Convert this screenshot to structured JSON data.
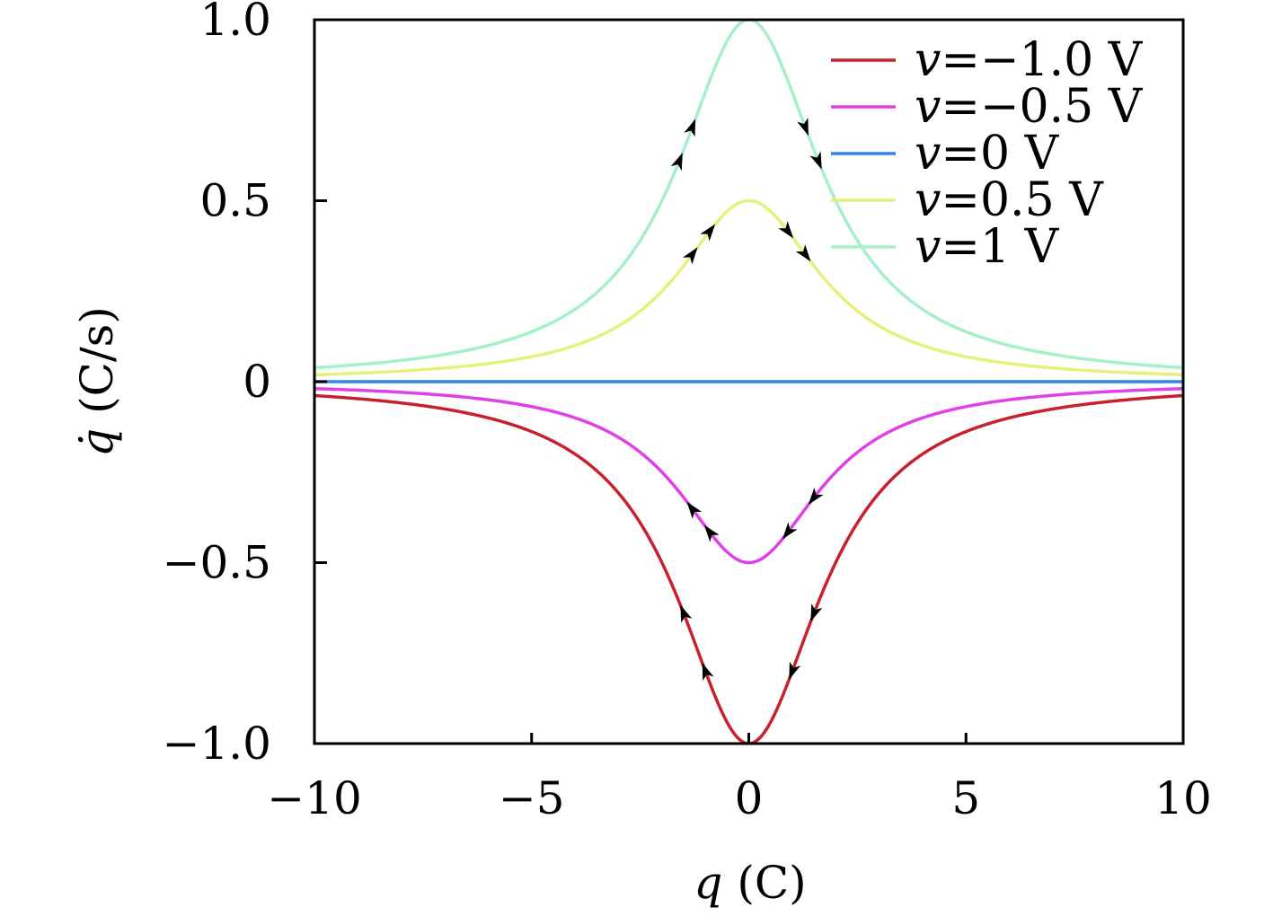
{
  "chart_data": {
    "type": "line",
    "xlabel_var": "q",
    "xlabel_unit": "(C)",
    "ylabel_var": "q̇",
    "ylabel_unit": "(C/s)",
    "xlim": [
      -10,
      10
    ],
    "ylim": [
      -1,
      1
    ],
    "x_ticks": [
      -10,
      -5,
      0,
      5,
      10
    ],
    "x_tick_labels": [
      "−10",
      "−5",
      "0",
      "5",
      "10"
    ],
    "y_ticks": [
      -1,
      -0.5,
      0,
      0.5,
      1
    ],
    "y_tick_labels": [
      "−1.0",
      "−0.5",
      "0",
      "0.5",
      "1.0"
    ],
    "grid": false,
    "legend_position": "top-right",
    "formula": "qdot = v / (1 + q^2 / 4)",
    "series": [
      {
        "name_var": "v",
        "name_value": "=−1.0 V",
        "v": -1.0,
        "color": "#c8202e"
      },
      {
        "name_var": "v",
        "name_value": "=−0.5 V",
        "v": -0.5,
        "color": "#e040e8"
      },
      {
        "name_var": "v",
        "name_value": "=0 V",
        "v": 0.0,
        "color": "#2e86e6"
      },
      {
        "name_var": "v",
        "name_value": "=0.5 V",
        "v": 0.5,
        "color": "#e6f07a"
      },
      {
        "name_var": "v",
        "name_value": "=1 V",
        "v": 1.0,
        "color": "#a4f0c8"
      }
    ],
    "sample_points": {
      "q": [
        -10,
        -5,
        -2,
        -1,
        0,
        1,
        2,
        5,
        10
      ],
      "qdot_for_v_1": [
        0.038,
        0.138,
        0.5,
        0.8,
        1.0,
        0.8,
        0.5,
        0.138,
        0.038
      ]
    },
    "arrows": [
      {
        "series_v": 1.0,
        "q": -1.3,
        "direction": "up"
      },
      {
        "series_v": 1.0,
        "q": -1.6,
        "direction": "up"
      },
      {
        "series_v": 1.0,
        "q": 1.3,
        "direction": "down"
      },
      {
        "series_v": 1.0,
        "q": 1.6,
        "direction": "down"
      },
      {
        "series_v": 0.5,
        "q": -0.9,
        "direction": "up"
      },
      {
        "series_v": 0.5,
        "q": -1.3,
        "direction": "up"
      },
      {
        "series_v": 0.5,
        "q": 0.9,
        "direction": "down"
      },
      {
        "series_v": 0.5,
        "q": 1.3,
        "direction": "down"
      },
      {
        "series_v": -0.5,
        "q": -1.3,
        "direction": "up"
      },
      {
        "series_v": -0.5,
        "q": -0.9,
        "direction": "up"
      },
      {
        "series_v": -0.5,
        "q": 0.9,
        "direction": "down"
      },
      {
        "series_v": -0.5,
        "q": 1.5,
        "direction": "down"
      },
      {
        "series_v": -1.0,
        "q": -1.5,
        "direction": "up"
      },
      {
        "series_v": -1.0,
        "q": -1.0,
        "direction": "up"
      },
      {
        "series_v": -1.0,
        "q": 1.0,
        "direction": "down"
      },
      {
        "series_v": -1.0,
        "q": 1.5,
        "direction": "down"
      }
    ]
  }
}
